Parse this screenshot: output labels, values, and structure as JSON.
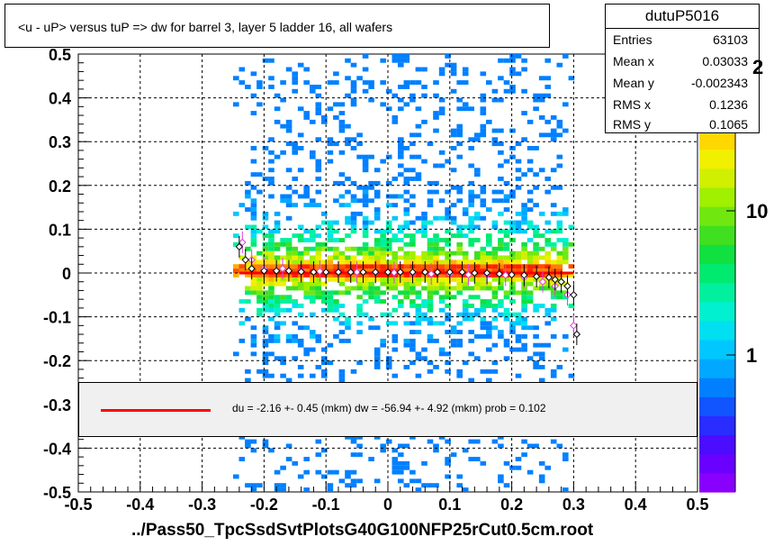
{
  "title": "<u - uP>       versus  tuP =>  dw for barrel 3, layer 5 ladder 16, all wafers",
  "stats": {
    "name": "dutuP5016",
    "rows": [
      {
        "label": "Entries",
        "value": "63103"
      },
      {
        "label": "Mean x",
        "value": "0.03033"
      },
      {
        "label": "Mean y",
        "value": "-0.002343"
      },
      {
        "label": "RMS x",
        "value": "0.1236"
      },
      {
        "label": "RMS y",
        "value": "0.1065"
      }
    ]
  },
  "fit_text": "du =   -2.16 +-  0.45 (mkm) dw =  -56.94 +-  4.92 (mkm) prob = 0.102",
  "x_axis_label": "../Pass50_TpcSsdSvtPlotsG40G100NFP25rCut0.5cm.root",
  "z_axis_exponent_fragment": "2",
  "colors": {
    "fit_line": "#ff0000",
    "frame": "#000000"
  },
  "chart_data": {
    "type": "heatmap",
    "xlim": [
      -0.5,
      0.5
    ],
    "ylim": [
      -0.5,
      0.5
    ],
    "x_ticks": [
      "-0.5",
      "-0.4",
      "-0.3",
      "-0.2",
      "-0.1",
      "0",
      "0.1",
      "0.2",
      "0.3",
      "0.4",
      "0.5"
    ],
    "y_ticks": [
      "0.5",
      "0.4",
      "0.3",
      "0.2",
      "0.1",
      "0",
      "-0.1",
      "-0.2",
      "-0.3",
      "-0.4",
      "-0.5"
    ],
    "z_ticks": [
      "10",
      "1"
    ],
    "z_scale": "log",
    "grid": true,
    "density_x_range": [
      -0.25,
      0.3
    ],
    "density_peak_y": 0.0,
    "fit_line": {
      "x": [
        -0.24,
        0.3
      ],
      "y": [
        0.0,
        0.0
      ],
      "color": "#ff0000"
    },
    "profile_black": {
      "x": [
        -0.24,
        -0.23,
        -0.22,
        -0.2,
        -0.18,
        -0.16,
        -0.14,
        -0.12,
        -0.1,
        -0.08,
        -0.06,
        -0.04,
        -0.02,
        0.0,
        0.02,
        0.04,
        0.06,
        0.08,
        0.1,
        0.12,
        0.14,
        0.16,
        0.18,
        0.2,
        0.22,
        0.24,
        0.26,
        0.27,
        0.28,
        0.29,
        0.3,
        0.305
      ],
      "y": [
        0.06,
        0.03,
        0.01,
        0.005,
        0.005,
        0.005,
        0.003,
        0.002,
        0.002,
        0.002,
        0.002,
        0.002,
        0.002,
        0.002,
        0.002,
        0.002,
        0.002,
        0.002,
        0.002,
        0.002,
        0.0,
        0.0,
        -0.002,
        -0.004,
        -0.005,
        -0.008,
        -0.01,
        -0.015,
        -0.02,
        -0.03,
        -0.05,
        -0.14
      ]
    },
    "profile_magenta": {
      "x": [
        -0.235,
        -0.22,
        -0.2,
        -0.17,
        -0.14,
        -0.11,
        -0.08,
        -0.05,
        -0.02,
        0.01,
        0.04,
        0.07,
        0.1,
        0.13,
        0.16,
        0.19,
        0.22,
        0.25,
        0.27,
        0.29,
        0.3
      ],
      "y": [
        0.07,
        0.03,
        0.01,
        0.01,
        0.005,
        0.004,
        0.003,
        0.002,
        0.001,
        0.001,
        0.0,
        -0.002,
        -0.002,
        -0.004,
        -0.003,
        -0.005,
        -0.01,
        -0.02,
        -0.03,
        -0.05,
        -0.12
      ]
    }
  }
}
